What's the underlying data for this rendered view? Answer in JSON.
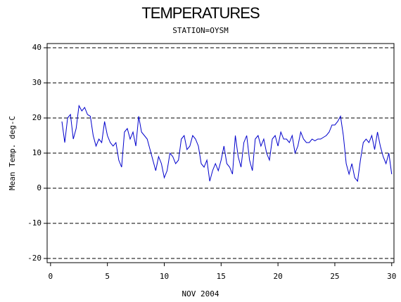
{
  "chart_data": {
    "type": "line",
    "title": "TEMPERATURES",
    "subtitle": "STATION=OYSM",
    "x_label": "NOV 2004",
    "y_label": "Mean Temp. deg-C",
    "xlim": [
      -0.3,
      30.2
    ],
    "ylim": [
      -21.2,
      41.2
    ],
    "xticks": [
      0,
      5,
      10,
      15,
      20,
      25,
      30
    ],
    "yticks": [
      -20,
      -10,
      0,
      10,
      20,
      30,
      40
    ],
    "grid": true,
    "grid_style": "dashed",
    "x": [
      1,
      1.25,
      1.5,
      1.75,
      2,
      2.25,
      2.5,
      2.75,
      3,
      3.25,
      3.5,
      3.75,
      4,
      4.25,
      4.5,
      4.75,
      5,
      5.25,
      5.5,
      5.75,
      6,
      6.25,
      6.5,
      6.75,
      7,
      7.25,
      7.5,
      7.75,
      8,
      8.25,
      8.5,
      8.75,
      9,
      9.25,
      9.5,
      9.75,
      10,
      10.25,
      10.5,
      10.75,
      11,
      11.25,
      11.5,
      11.75,
      12,
      12.25,
      12.5,
      12.75,
      13,
      13.25,
      13.5,
      13.75,
      14,
      14.25,
      14.5,
      14.75,
      15,
      15.25,
      15.5,
      15.75,
      16,
      16.25,
      16.5,
      16.75,
      17,
      17.25,
      17.5,
      17.75,
      18,
      18.25,
      18.5,
      18.75,
      19,
      19.25,
      19.5,
      19.75,
      20,
      20.25,
      20.5,
      20.75,
      21,
      21.25,
      21.5,
      21.75,
      22,
      22.25,
      22.5,
      22.75,
      23,
      23.25,
      23.5,
      23.75,
      24,
      24.25,
      24.5,
      24.75,
      25,
      25.25,
      25.5,
      25.75,
      26,
      26.25,
      26.5,
      26.75,
      27,
      27.25,
      27.5,
      27.75,
      28,
      28.25,
      28.5,
      28.75,
      29,
      29.25,
      29.5,
      29.75,
      30
    ],
    "series": [
      {
        "color": "#0000cc",
        "values": [
          19,
          13,
          20,
          21,
          14,
          17,
          23.5,
          22,
          23,
          21,
          20.5,
          15,
          12,
          14,
          13,
          19,
          15,
          13,
          12,
          13,
          8,
          6,
          16,
          17,
          14,
          16,
          12,
          20.5,
          16,
          15,
          14,
          11,
          8,
          5,
          9,
          7,
          3,
          5,
          10,
          9,
          7,
          8,
          14,
          15,
          11,
          12,
          15,
          14,
          12,
          7,
          6,
          8,
          2,
          5,
          7,
          5,
          8,
          12,
          7,
          6,
          4,
          15,
          9,
          6,
          13,
          15,
          8,
          5,
          14,
          15,
          12,
          14,
          10,
          8,
          14,
          15,
          12,
          16,
          14,
          14,
          13,
          15,
          10,
          12,
          16,
          14,
          13,
          13,
          14,
          13.5,
          14,
          14,
          14.5,
          15,
          16,
          18,
          18,
          19,
          20.5,
          15,
          7,
          4,
          7,
          3,
          2,
          8,
          13,
          14,
          13,
          15,
          11,
          16,
          12,
          9,
          7,
          10,
          4
        ]
      }
    ]
  }
}
